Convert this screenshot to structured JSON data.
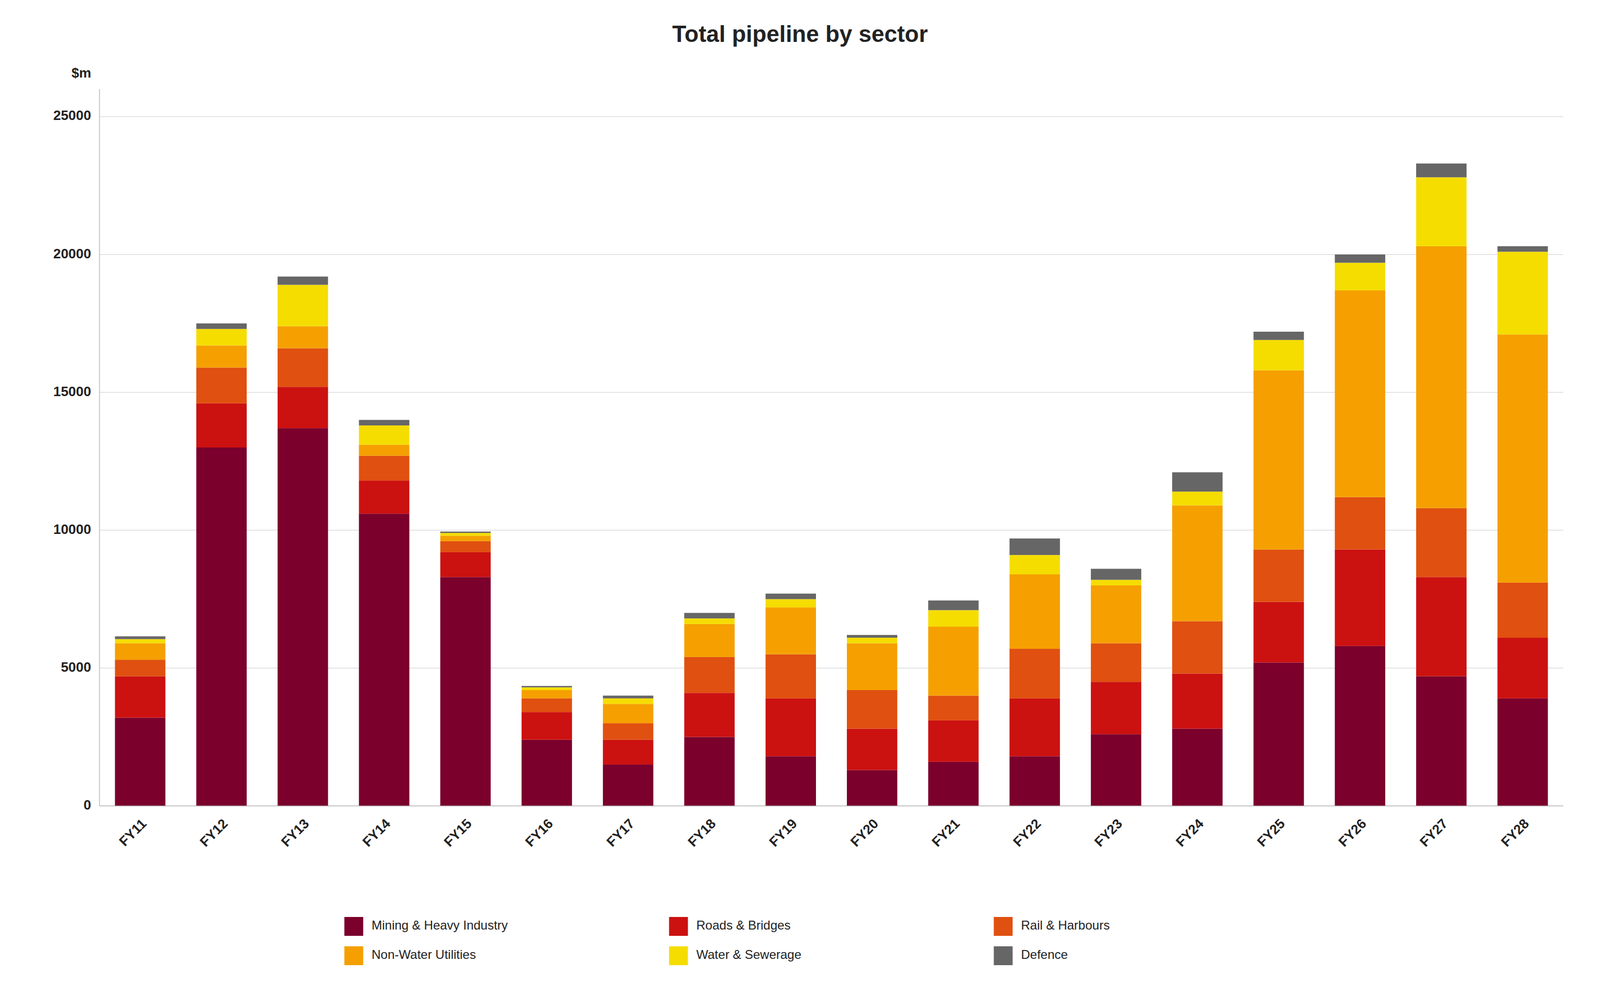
{
  "chart_data": {
    "type": "bar",
    "title": "Total pipeline by sector",
    "y_label": "$m",
    "categories": [
      "FY11",
      "FY12",
      "FY13",
      "FY14",
      "FY15",
      "FY16",
      "FY17",
      "FY18",
      "FY19",
      "FY20",
      "FY21",
      "FY22",
      "FY23",
      "FY24",
      "FY25",
      "FY26",
      "FY27",
      "FY28"
    ],
    "series": [
      {
        "name": "Mining & Heavy Industry",
        "color": "#7B002C",
        "values": [
          3200,
          13000,
          13700,
          10600,
          8300,
          2400,
          1500,
          2500,
          1800,
          1300,
          1600,
          1800,
          2600,
          2800,
          5200,
          5800,
          4700,
          3900
        ]
      },
      {
        "name": "Roads & Bridges",
        "color": "#CC1111",
        "values": [
          1500,
          1600,
          1500,
          1200,
          900,
          1000,
          900,
          1600,
          2100,
          1500,
          1500,
          2100,
          1900,
          2000,
          2200,
          3500,
          3600,
          2200
        ]
      },
      {
        "name": "Rail & Harbours",
        "color": "#E05010",
        "values": [
          600,
          1300,
          1400,
          900,
          400,
          500,
          600,
          1300,
          1600,
          1400,
          900,
          1800,
          1400,
          1900,
          1900,
          1900,
          2500,
          2000
        ]
      },
      {
        "name": "Non-Water Utilities",
        "color": "#F5A000",
        "values": [
          600,
          800,
          800,
          400,
          200,
          300,
          700,
          1200,
          1700,
          1700,
          2500,
          2700,
          2100,
          4200,
          6500,
          7500,
          9500,
          9000
        ]
      },
      {
        "name": "Water & Sewerage",
        "color": "#F5DD00",
        "values": [
          150,
          600,
          1500,
          700,
          100,
          100,
          200,
          200,
          300,
          200,
          600,
          700,
          200,
          500,
          1100,
          1000,
          2500,
          3000
        ]
      },
      {
        "name": "Defence",
        "color": "#666666",
        "values": [
          100,
          200,
          300,
          200,
          50,
          50,
          100,
          200,
          200,
          100,
          350,
          600,
          400,
          700,
          300,
          300,
          500,
          200
        ]
      }
    ],
    "ylim": [
      0,
      26000
    ],
    "yticks": [
      0,
      5000,
      10000,
      15000,
      20000,
      25000
    ],
    "stacked": true,
    "grid": true,
    "legend": "bottom"
  }
}
